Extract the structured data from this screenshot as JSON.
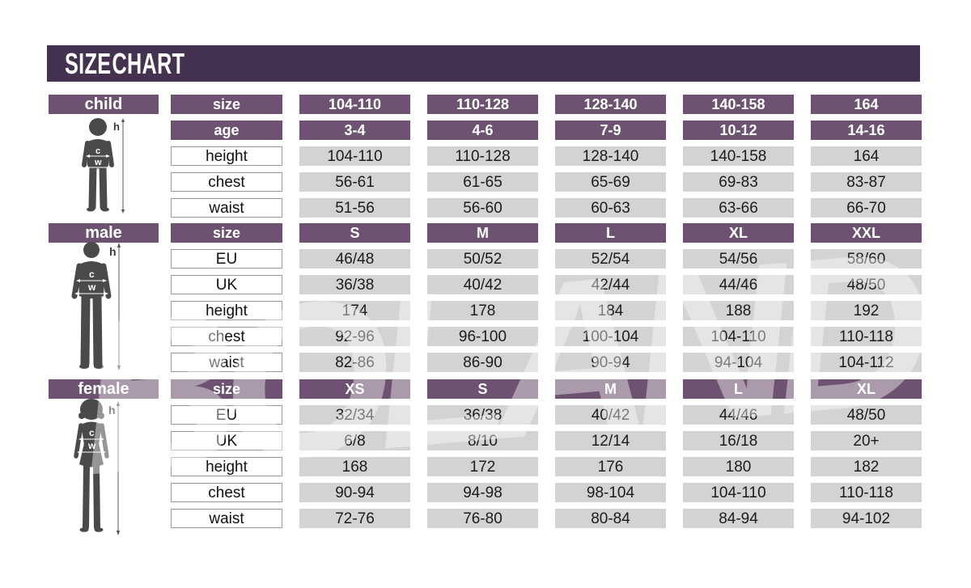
{
  "title": "SIZE CHART",
  "watermark": "BOLAND",
  "colors": {
    "title_band": "#443250",
    "header_purple": "#6d5271",
    "cell_gray": "#d3d3d3",
    "silhouette": "#4a4a4a"
  },
  "figure_labels": {
    "height": "h",
    "chest": "c",
    "waist": "w"
  },
  "chart_data": {
    "type": "table",
    "tables": [
      {
        "id": "child",
        "label": "child",
        "rows": [
          {
            "label": "size",
            "style": "header",
            "values": [
              "104-110",
              "110-128",
              "128-140",
              "140-158",
              "164"
            ]
          },
          {
            "label": "age",
            "style": "header",
            "values": [
              "3-4",
              "4-6",
              "7-9",
              "10-12",
              "14-16"
            ]
          },
          {
            "label": "height",
            "style": "data",
            "values": [
              "104-110",
              "110-128",
              "128-140",
              "140-158",
              "164"
            ]
          },
          {
            "label": "chest",
            "style": "data",
            "values": [
              "56-61",
              "61-65",
              "65-69",
              "69-83",
              "83-87"
            ]
          },
          {
            "label": "waist",
            "style": "data",
            "values": [
              "51-56",
              "56-60",
              "60-63",
              "63-66",
              "66-70"
            ]
          }
        ]
      },
      {
        "id": "male",
        "label": "male",
        "rows": [
          {
            "label": "size",
            "style": "header",
            "values": [
              "S",
              "M",
              "L",
              "XL",
              "XXL"
            ]
          },
          {
            "label": "EU",
            "style": "data",
            "values": [
              "46/48",
              "50/52",
              "52/54",
              "54/56",
              "58/60"
            ]
          },
          {
            "label": "UK",
            "style": "data",
            "values": [
              "36/38",
              "40/42",
              "42/44",
              "44/46",
              "48/50"
            ]
          },
          {
            "label": "height",
            "style": "data",
            "values": [
              "174",
              "178",
              "184",
              "188",
              "192"
            ]
          },
          {
            "label": "chest",
            "style": "data",
            "values": [
              "92-96",
              "96-100",
              "100-104",
              "104-110",
              "110-118"
            ]
          },
          {
            "label": "waist",
            "style": "data",
            "values": [
              "82-86",
              "86-90",
              "90-94",
              "94-104",
              "104-112"
            ]
          }
        ]
      },
      {
        "id": "female",
        "label": "female",
        "rows": [
          {
            "label": "size",
            "style": "header",
            "values": [
              "XS",
              "S",
              "M",
              "L",
              "XL"
            ]
          },
          {
            "label": "EU",
            "style": "data",
            "values": [
              "32/34",
              "36/38",
              "40/42",
              "44/46",
              "48/50"
            ]
          },
          {
            "label": "UK",
            "style": "data",
            "values": [
              "6/8",
              "8/10",
              "12/14",
              "16/18",
              "20+"
            ]
          },
          {
            "label": "height",
            "style": "data",
            "values": [
              "168",
              "172",
              "176",
              "180",
              "182"
            ]
          },
          {
            "label": "chest",
            "style": "data",
            "values": [
              "90-94",
              "94-98",
              "98-104",
              "104-110",
              "110-118"
            ]
          },
          {
            "label": "waist",
            "style": "data",
            "values": [
              "72-76",
              "76-80",
              "80-84",
              "84-94",
              "94-102"
            ]
          }
        ]
      }
    ]
  }
}
